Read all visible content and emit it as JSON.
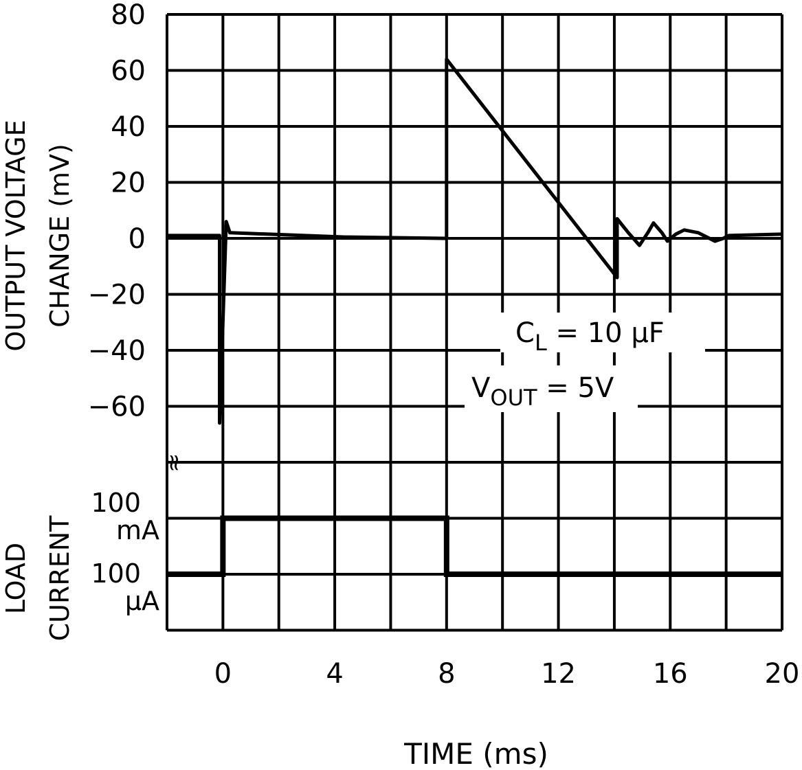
{
  "chart_data": {
    "type": "line",
    "title": "",
    "xlabel": "TIME (ms)",
    "ylabel_lines": [
      "OUTPUT VOLTAGE",
      "CHANGE (mV)"
    ],
    "xlim": [
      -2,
      20
    ],
    "ylim": [
      -80,
      80
    ],
    "x_ticks": [
      "0",
      "4",
      "8",
      "12",
      "16",
      "20"
    ],
    "x_tick_values": [
      0,
      4,
      8,
      12,
      16,
      20
    ],
    "y_ticks": [
      "80",
      "60",
      "40",
      "20",
      "0",
      "-20",
      "-40",
      "-60"
    ],
    "y_tick_values": [
      80,
      60,
      40,
      20,
      0,
      -20,
      -40,
      -60
    ],
    "grid": true,
    "axis_break_symbol": "≈",
    "series": [
      {
        "points": [
          [
            -2,
            1
          ],
          [
            -0.12,
            1
          ],
          [
            -0.12,
            -66
          ],
          [
            0.12,
            6
          ],
          [
            0.25,
            2
          ],
          [
            4.3,
            0.5
          ],
          [
            7.9,
            0
          ],
          [
            8,
            0
          ],
          [
            8,
            64
          ],
          [
            14.1,
            -14
          ],
          [
            14.1,
            7
          ],
          [
            14.5,
            2
          ],
          [
            14.9,
            -2.5
          ],
          [
            15.2,
            2
          ],
          [
            15.4,
            5.5
          ],
          [
            15.7,
            2
          ],
          [
            15.9,
            -1
          ],
          [
            16.2,
            1.5
          ],
          [
            16.5,
            3
          ],
          [
            17,
            2
          ],
          [
            17.6,
            -1
          ],
          [
            17.9,
            0
          ],
          [
            18.1,
            1
          ],
          [
            20,
            1.5
          ]
        ],
        "color": "#000000"
      }
    ],
    "load_current": {
      "label_lines": [
        "LOAD",
        "CURRENT"
      ],
      "levels": [
        {
          "value_label": "100",
          "unit_label": "mA"
        },
        {
          "value_label": "100",
          "unit_label": "µA"
        }
      ],
      "steps": [
        [
          -2,
          "low"
        ],
        [
          0,
          "high"
        ],
        [
          8,
          "low"
        ],
        [
          20,
          "low"
        ]
      ]
    },
    "annotations": {
      "cl": {
        "main": "C",
        "sub": "L",
        "rest": " = 10 µF"
      },
      "vout": {
        "main": "V",
        "sub": "OUT",
        "rest": " = 5V"
      }
    }
  }
}
